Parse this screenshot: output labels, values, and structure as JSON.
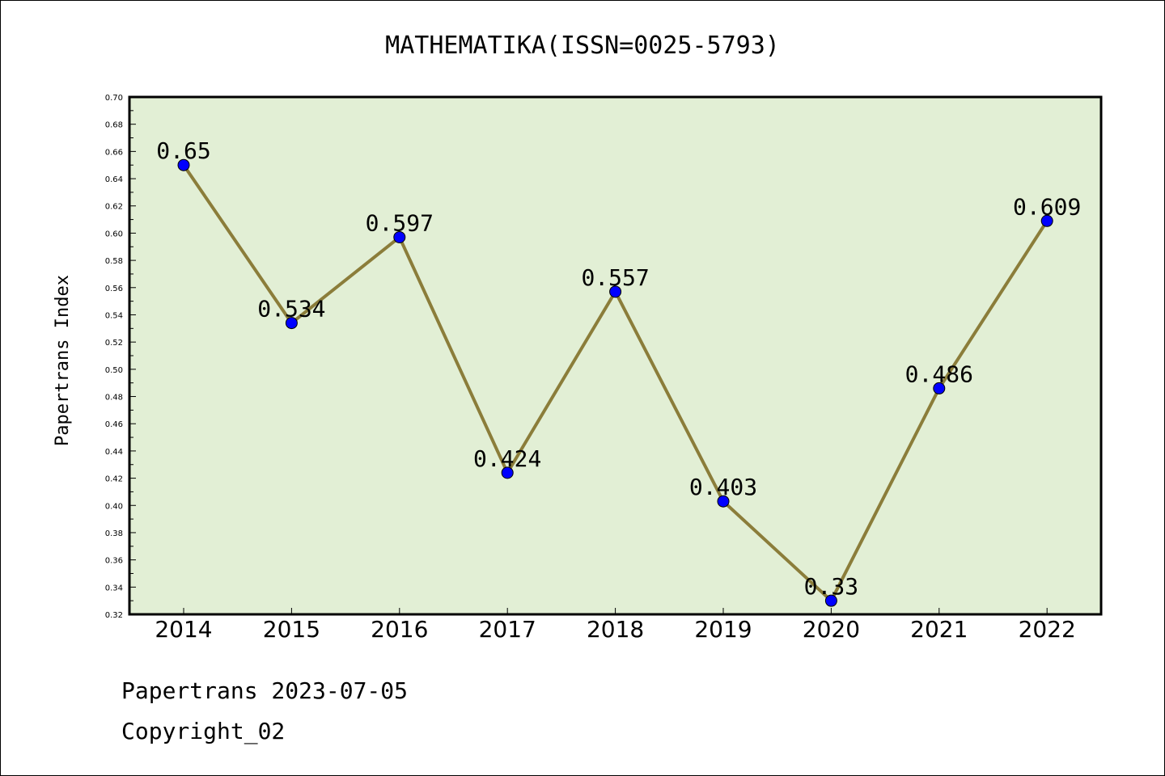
{
  "chart_data": {
    "type": "line",
    "title": "MATHEMATIKA(ISSN=0025-5793)",
    "xlabel": "",
    "ylabel": "Papertrans Index",
    "categories": [
      "2014",
      "2015",
      "2016",
      "2017",
      "2018",
      "2019",
      "2020",
      "2021",
      "2022"
    ],
    "series": [
      {
        "values": [
          0.65,
          0.534,
          0.597,
          0.424,
          0.557,
          0.403,
          0.33,
          0.486,
          0.609
        ]
      }
    ],
    "data_labels": [
      "0.65",
      "0.534",
      "0.597",
      "0.424",
      "0.557",
      "0.403",
      "0.33",
      "0.486",
      "0.609"
    ],
    "ylim": [
      0.32,
      0.7
    ],
    "yticks": [
      "0.32",
      "0.34",
      "0.36",
      "0.38",
      "0.40",
      "0.42",
      "0.44",
      "0.46",
      "0.48",
      "0.50",
      "0.52",
      "0.54",
      "0.56",
      "0.58",
      "0.60",
      "0.62",
      "0.64",
      "0.66",
      "0.68",
      "0.70"
    ],
    "grid": false,
    "line_color": "#8b7d3a",
    "marker_color": "#0000ff",
    "plot_background": "#e2efd5"
  },
  "footer": {
    "line1": "Papertrans 2023-07-05",
    "line2": "Copyright_02"
  }
}
